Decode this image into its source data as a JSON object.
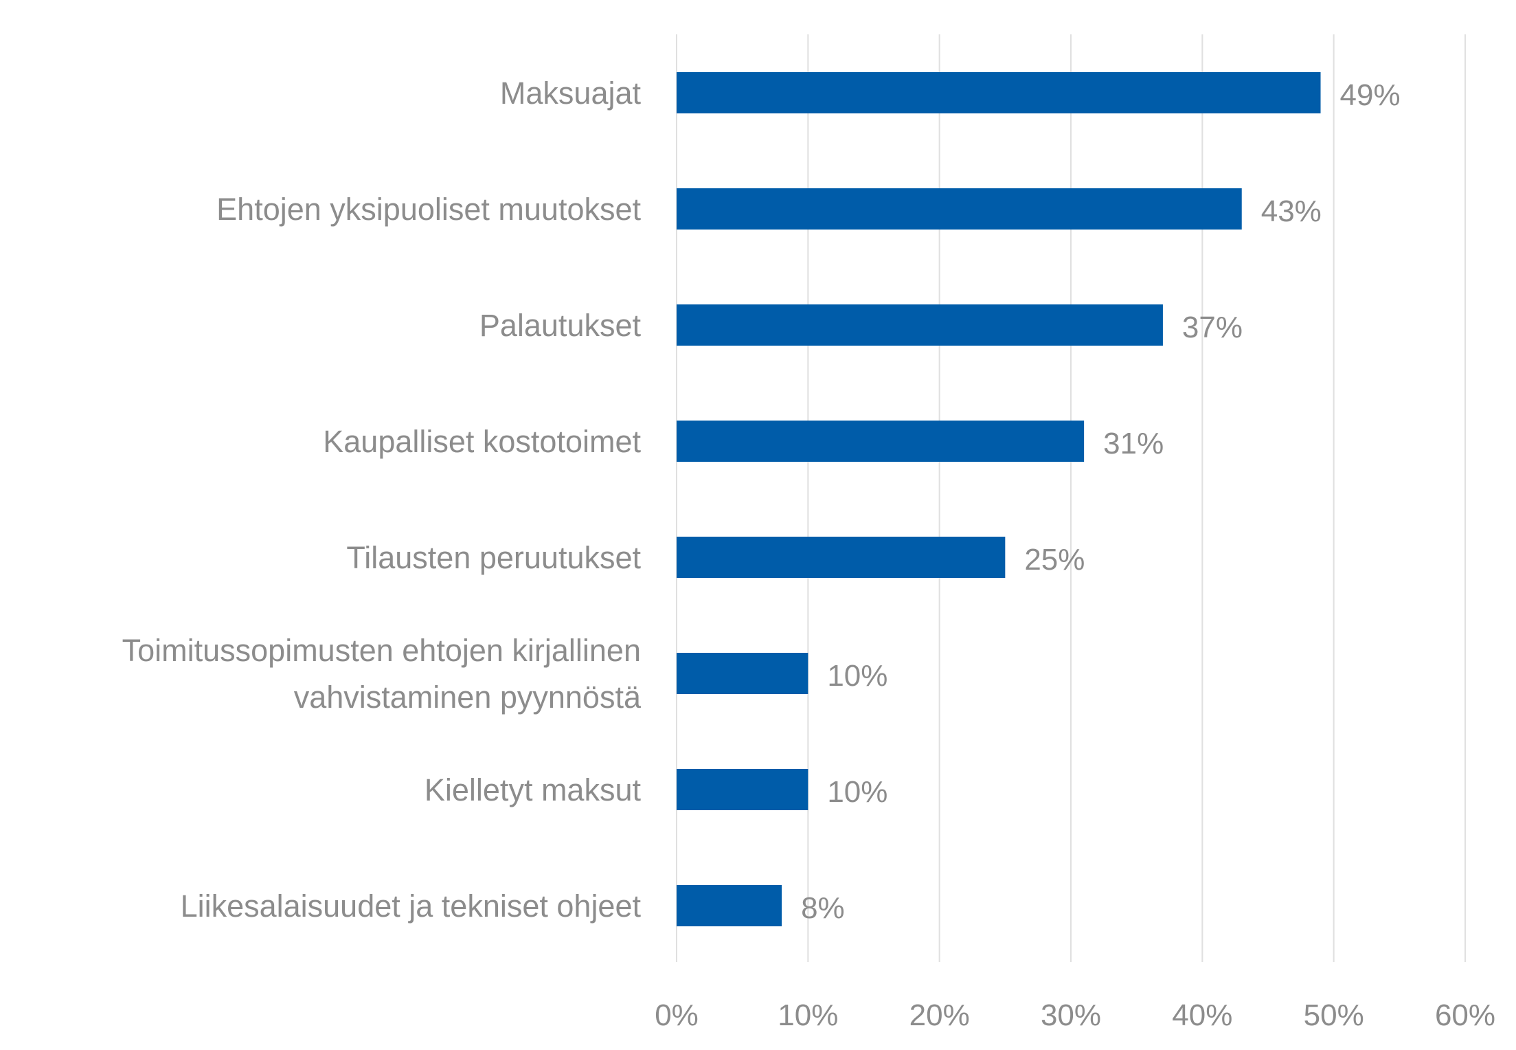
{
  "chart_data": {
    "type": "bar",
    "orientation": "horizontal",
    "categories": [
      "Maksuajat",
      "Ehtojen yksipuoliset muutokset",
      "Palautukset",
      "Kaupalliset kostotoimet",
      "Tilausten peruutukset",
      "Toimitussopimusten ehtojen kirjallinen vahvistaminen pyynnöstä",
      "Kielletyt maksut",
      "Liikesalaisuudet ja tekniset ohjeet"
    ],
    "category_lines": [
      [
        "Maksuajat"
      ],
      [
        "Ehtojen yksipuoliset muutokset"
      ],
      [
        "Palautukset"
      ],
      [
        "Kaupalliset kostotoimet"
      ],
      [
        "Tilausten peruutukset"
      ],
      [
        "Toimitussopimusten ehtojen kirjallinen",
        "vahvistaminen pyynnöstä"
      ],
      [
        "Kielletyt maksut"
      ],
      [
        "Liikesalaisuudet ja tekniset ohjeet"
      ]
    ],
    "values": [
      49,
      43,
      37,
      31,
      25,
      10,
      10,
      8
    ],
    "data_labels": [
      "49%",
      "43%",
      "37%",
      "31%",
      "25%",
      "10%",
      "10%",
      "8%"
    ],
    "xlim": [
      0,
      60
    ],
    "xticks": [
      0,
      10,
      20,
      30,
      40,
      50,
      60
    ],
    "xtick_labels": [
      "0%",
      "10%",
      "20%",
      "30%",
      "40%",
      "50%",
      "60%"
    ],
    "grid": "vertical",
    "legend": "none",
    "colors": {
      "bar": "#005ca9",
      "grid": "#e0e0e0",
      "text": "#8c8c8c"
    }
  }
}
